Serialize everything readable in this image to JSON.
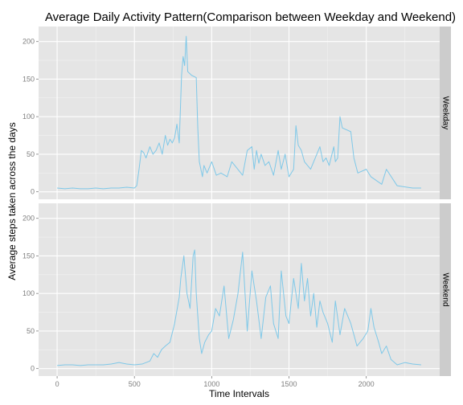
{
  "chart_data": {
    "type": "line",
    "title": "Average Daily Activity Pattern(Comparison between Weekday and Weekend)",
    "xlabel": "Time Intervals",
    "ylabel": "Average steps taken across the days",
    "xlim": [
      -120,
      2475
    ],
    "ylim": [
      -10,
      220
    ],
    "xticks": [
      0,
      500,
      1000,
      1500,
      2000
    ],
    "yticks": [
      0,
      50,
      100,
      150,
      200
    ],
    "grid": true,
    "line_color": "#7ec8e8",
    "facets": [
      {
        "label": "Weekday",
        "series": [
          {
            "x": [
              0,
              50,
              100,
              150,
              200,
              250,
              300,
              350,
              400,
              450,
              500,
              515,
              530,
              545,
              560,
              575,
              600,
              620,
              640,
              660,
              680,
              700,
              715,
              730,
              745,
              760,
              775,
              790,
              805,
              815,
              825,
              835,
              845,
              855,
              870,
              900,
              910,
              920,
              930,
              940,
              950,
              970,
              1000,
              1030,
              1060,
              1100,
              1130,
              1200,
              1230,
              1260,
              1275,
              1290,
              1305,
              1320,
              1345,
              1370,
              1400,
              1430,
              1450,
              1475,
              1500,
              1530,
              1545,
              1560,
              1580,
              1600,
              1640,
              1700,
              1720,
              1740,
              1760,
              1790,
              1800,
              1815,
              1830,
              1845,
              1900,
              1920,
              1945,
              2000,
              2030,
              2100,
              2130,
              2200,
              2300,
              2355
            ],
            "y": [
              5,
              4,
              5,
              4,
              4,
              5,
              4,
              5,
              5,
              6,
              5,
              8,
              30,
              55,
              52,
              45,
              60,
              50,
              55,
              65,
              50,
              75,
              62,
              70,
              65,
              72,
              90,
              65,
              155,
              180,
              168,
              207,
              160,
              158,
              155,
              152,
              85,
              40,
              30,
              20,
              35,
              25,
              40,
              22,
              25,
              20,
              40,
              22,
              55,
              60,
              30,
              55,
              38,
              50,
              35,
              40,
              22,
              55,
              30,
              50,
              20,
              30,
              88,
              62,
              55,
              40,
              30,
              60,
              40,
              45,
              35,
              60,
              40,
              45,
              100,
              85,
              80,
              45,
              25,
              30,
              20,
              10,
              30,
              8,
              5,
              5
            ]
          }
        ]
      },
      {
        "label": "Weekend",
        "series": [
          {
            "x": [
              0,
              50,
              100,
              150,
              200,
              250,
              300,
              350,
              400,
              450,
              500,
              550,
              600,
              625,
              650,
              675,
              700,
              730,
              760,
              790,
              800,
              820,
              840,
              860,
              880,
              890,
              900,
              910,
              920,
              935,
              955,
              980,
              1000,
              1025,
              1050,
              1080,
              1110,
              1140,
              1170,
              1200,
              1230,
              1260,
              1290,
              1320,
              1350,
              1380,
              1400,
              1430,
              1450,
              1480,
              1500,
              1530,
              1560,
              1580,
              1600,
              1620,
              1640,
              1660,
              1680,
              1700,
              1720,
              1750,
              1780,
              1800,
              1830,
              1860,
              1900,
              1940,
              1980,
              2010,
              2030,
              2050,
              2080,
              2100,
              2130,
              2160,
              2200,
              2250,
              2300,
              2355
            ],
            "y": [
              4,
              5,
              5,
              4,
              5,
              5,
              5,
              6,
              8,
              6,
              5,
              6,
              10,
              20,
              15,
              25,
              30,
              35,
              60,
              95,
              120,
              150,
              100,
              80,
              150,
              158,
              100,
              70,
              40,
              20,
              35,
              45,
              50,
              80,
              70,
              110,
              40,
              65,
              100,
              155,
              50,
              130,
              90,
              40,
              95,
              110,
              60,
              40,
              130,
              70,
              60,
              120,
              80,
              140,
              90,
              120,
              70,
              100,
              55,
              90,
              75,
              60,
              35,
              90,
              45,
              80,
              60,
              30,
              40,
              50,
              80,
              55,
              35,
              20,
              30,
              12,
              5,
              8,
              6,
              5
            ]
          }
        ]
      }
    ]
  }
}
